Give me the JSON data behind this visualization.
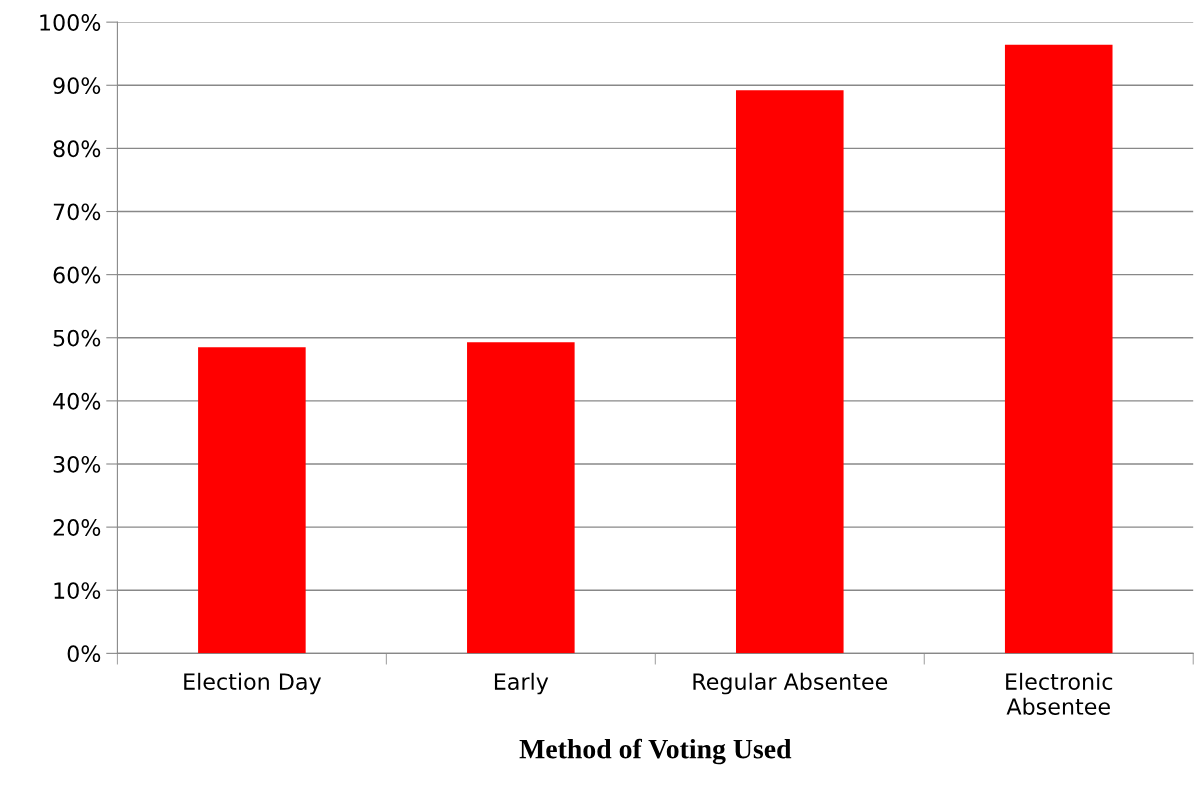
{
  "chart_data": {
    "type": "bar",
    "xlabel": "Method of Voting Used",
    "categories": [
      "Election Day",
      "Early",
      "Regular Absentee",
      "Electronic\nAbsentee"
    ],
    "values": [
      48.5,
      49.3,
      89.2,
      96.4
    ],
    "color": "#ff0000",
    "ylim": [
      0,
      100
    ],
    "yticks": [
      {
        "value": 0,
        "label": "0%"
      },
      {
        "value": 10,
        "label": "10%"
      },
      {
        "value": 20,
        "label": "20%"
      },
      {
        "value": 30,
        "label": "30%"
      },
      {
        "value": 40,
        "label": "40%"
      },
      {
        "value": 50,
        "label": "50%"
      },
      {
        "value": 60,
        "label": "60%"
      },
      {
        "value": 70,
        "label": "70%"
      },
      {
        "value": 80,
        "label": "80%"
      },
      {
        "value": 90,
        "label": "90%"
      },
      {
        "value": 100,
        "label": "100%"
      }
    ],
    "grid": "y"
  }
}
